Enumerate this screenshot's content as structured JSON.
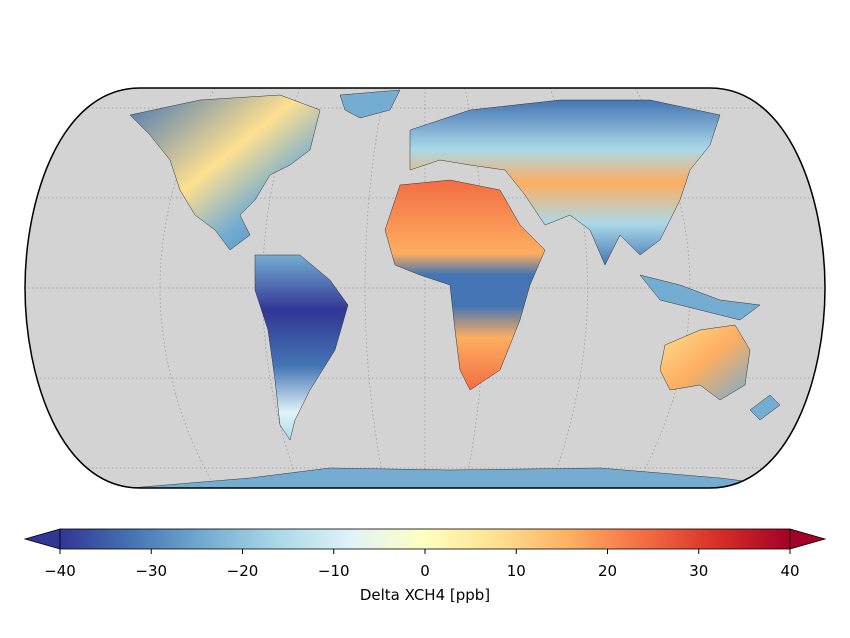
{
  "colorbar": {
    "label": "Delta XCH4 [ppb]",
    "lim": [
      -40,
      40
    ],
    "ticks": [
      {
        "value": -40,
        "label": "−40"
      },
      {
        "value": -30,
        "label": "−30"
      },
      {
        "value": -20,
        "label": "−20"
      },
      {
        "value": -10,
        "label": "−10"
      },
      0,
      10,
      20,
      30,
      40
    ],
    "colormap": "RdYlBu_r",
    "extend": "both",
    "colors": [
      "#313695",
      "#4575b4",
      "#74add1",
      "#abd9e9",
      "#e0f3f8",
      "#ffffbf",
      "#fee090",
      "#fdae61",
      "#f46d43",
      "#d73027",
      "#a50026"
    ]
  }
}
